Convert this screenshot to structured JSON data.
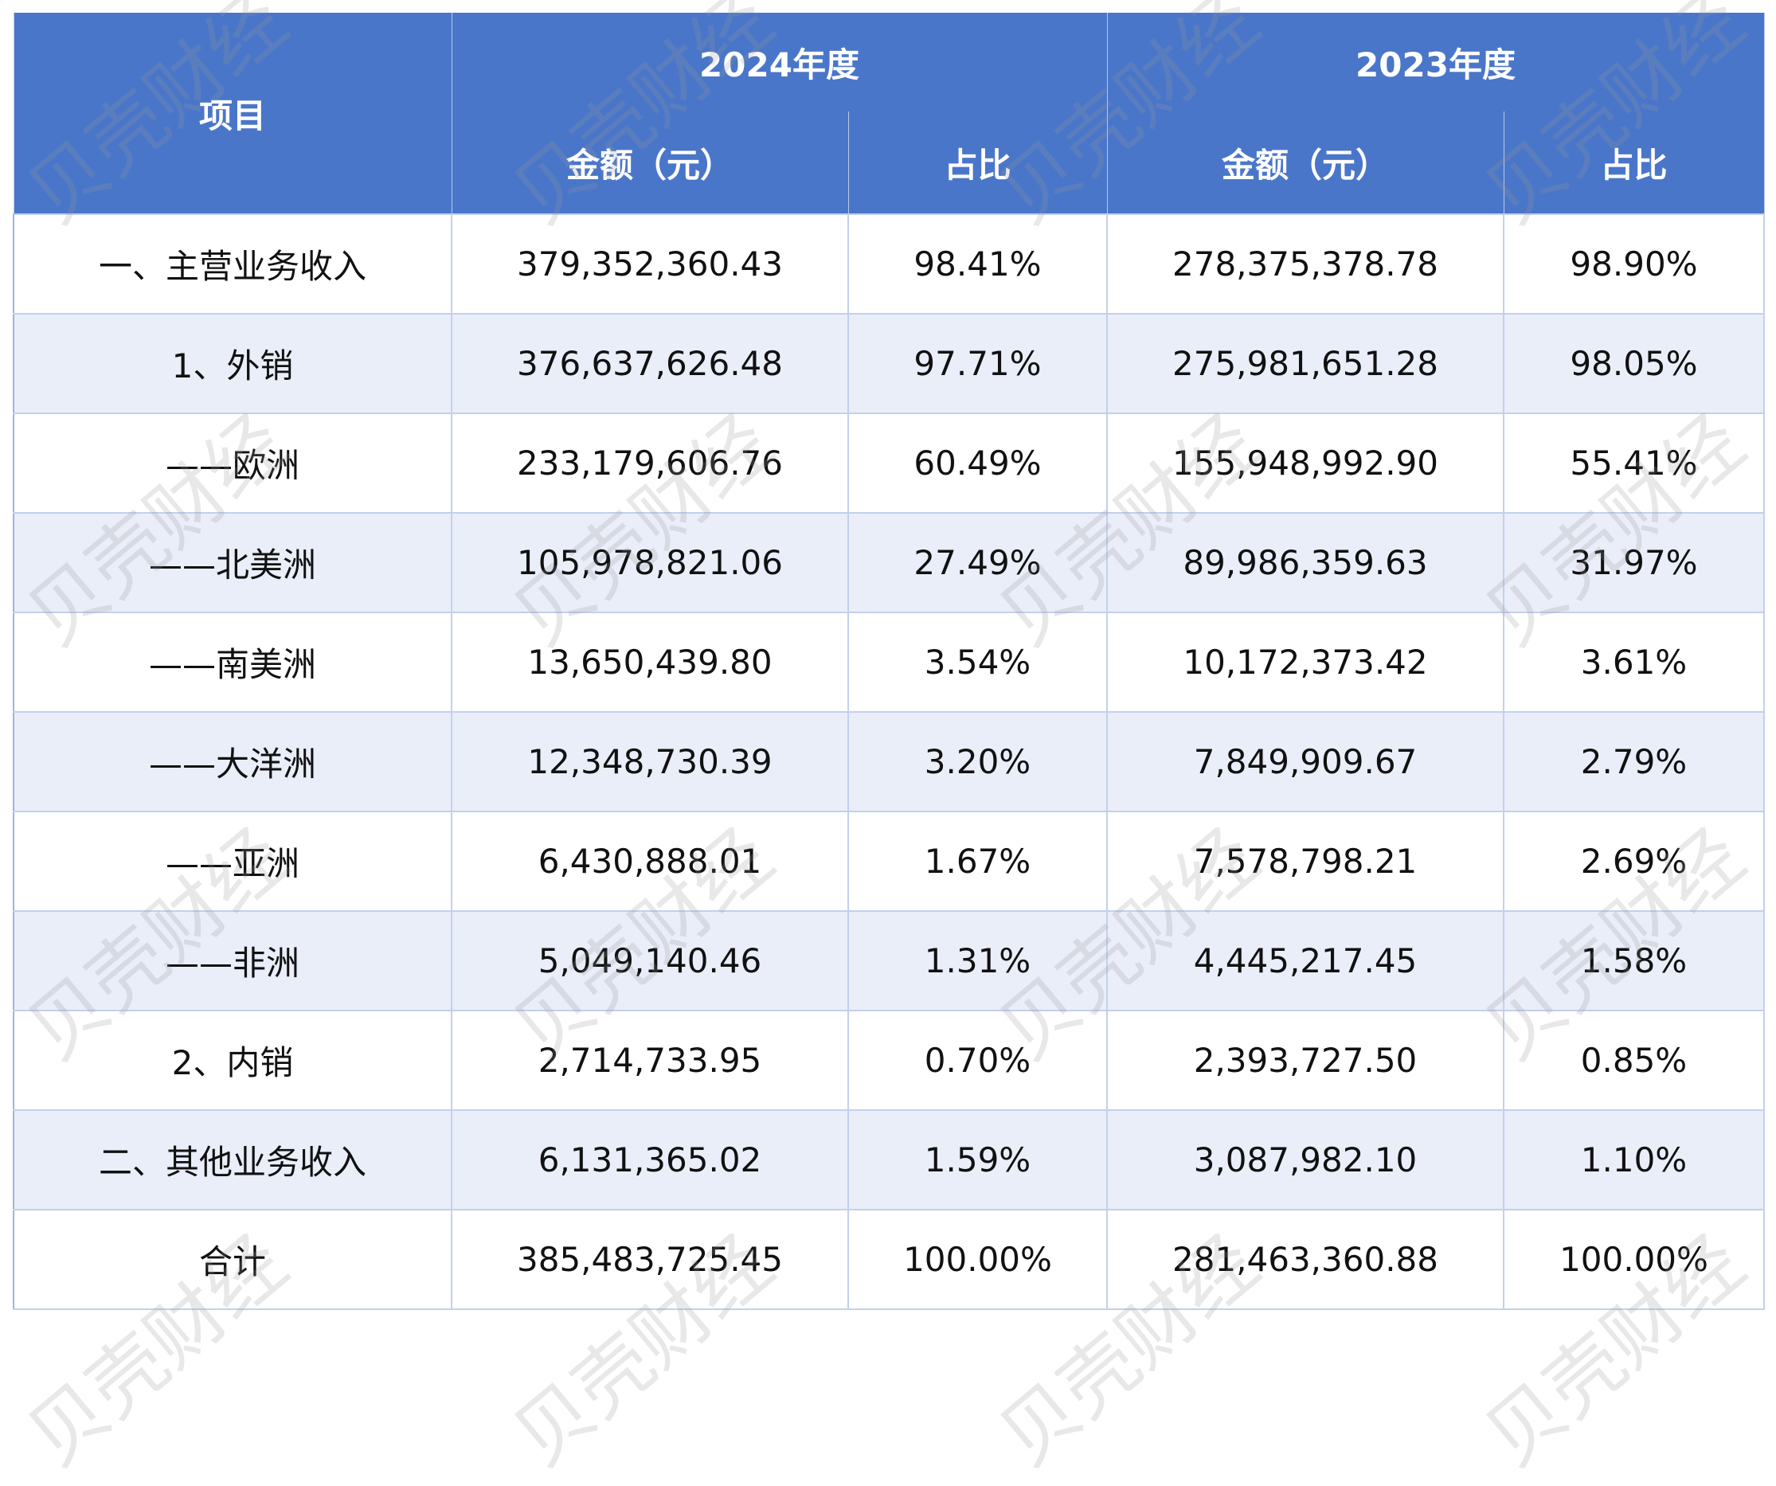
{
  "watermark": "贝壳财经",
  "header": {
    "item": "项目",
    "year_2024": "2024年度",
    "year_2023": "2023年度",
    "amount": "金额（元）",
    "ratio": "占比"
  },
  "rows": [
    {
      "item": "一、主营业务收入",
      "a2024": "379,352,360.43",
      "r2024": "98.41%",
      "a2023": "278,375,378.78",
      "r2023": "98.90%"
    },
    {
      "item": "1、外销",
      "a2024": "376,637,626.48",
      "r2024": "97.71%",
      "a2023": "275,981,651.28",
      "r2023": "98.05%"
    },
    {
      "item": "——欧洲",
      "a2024": "233,179,606.76",
      "r2024": "60.49%",
      "a2023": "155,948,992.90",
      "r2023": "55.41%"
    },
    {
      "item": "——北美洲",
      "a2024": "105,978,821.06",
      "r2024": "27.49%",
      "a2023": "89,986,359.63",
      "r2023": "31.97%"
    },
    {
      "item": "——南美洲",
      "a2024": "13,650,439.80",
      "r2024": "3.54%",
      "a2023": "10,172,373.42",
      "r2023": "3.61%"
    },
    {
      "item": "——大洋洲",
      "a2024": "12,348,730.39",
      "r2024": "3.20%",
      "a2023": "7,849,909.67",
      "r2023": "2.79%"
    },
    {
      "item": "——亚洲",
      "a2024": "6,430,888.01",
      "r2024": "1.67%",
      "a2023": "7,578,798.21",
      "r2023": "2.69%"
    },
    {
      "item": "——非洲",
      "a2024": "5,049,140.46",
      "r2024": "1.31%",
      "a2023": "4,445,217.45",
      "r2023": "1.58%"
    },
    {
      "item": "2、内销",
      "a2024": "2,714,733.95",
      "r2024": "0.70%",
      "a2023": "2,393,727.50",
      "r2023": "0.85%"
    },
    {
      "item": "二、其他业务收入",
      "a2024": "6,131,365.02",
      "r2024": "1.59%",
      "a2023": "3,087,982.10",
      "r2023": "1.10%"
    },
    {
      "item": "合计",
      "a2024": "385,483,725.45",
      "r2024": "100.00%",
      "a2023": "281,463,360.88",
      "r2023": "100.00%"
    }
  ]
}
